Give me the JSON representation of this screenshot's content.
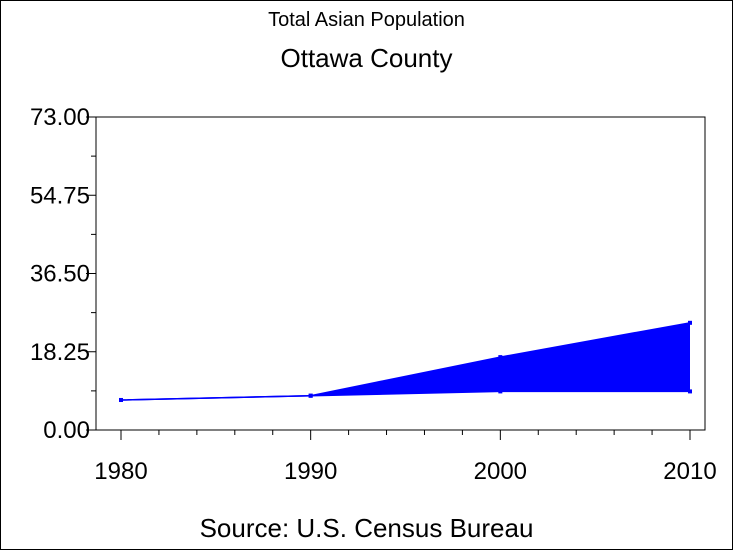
{
  "chart_data": {
    "type": "line",
    "title": "Total Asian Population",
    "subtitle": "Ottawa County",
    "footnote": "Source: U.S. Census Bureau",
    "xlabel": "",
    "ylabel": "",
    "x": [
      1980,
      1990,
      2000,
      2010
    ],
    "x_tick_labels": [
      "1980",
      "1990",
      "2000",
      "2010"
    ],
    "xlim": [
      1980,
      2010
    ],
    "y_tick_labels": [
      "0.00",
      "18.25",
      "36.50",
      "54.75",
      "73.00"
    ],
    "y_ticks": [
      0,
      18.25,
      36.5,
      54.75,
      73
    ],
    "ylim": [
      0,
      73
    ],
    "grid": false,
    "series": [
      {
        "values": [
          7,
          8,
          17,
          25
        ]
      },
      {
        "values": [
          7,
          8,
          9,
          9
        ]
      }
    ],
    "band_between_series": [
      0,
      1
    ],
    "colors": {
      "series": "#0000ff",
      "axes": "#000000"
    }
  }
}
